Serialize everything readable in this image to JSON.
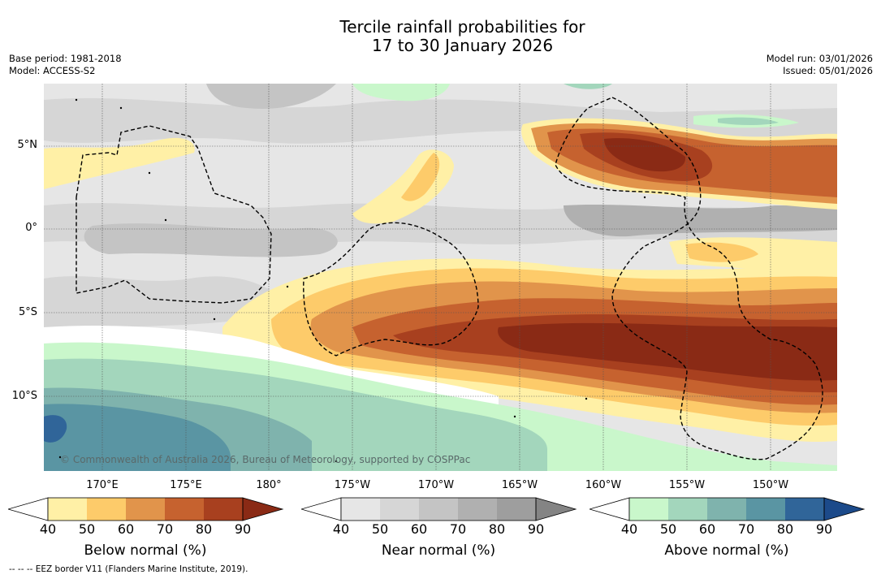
{
  "title": {
    "line1": "Tercile rainfall probabilities for",
    "line2": "17 to 30 January 2026"
  },
  "meta_left": {
    "base_period": "Base period: 1981-2018",
    "model": "Model: ACCESS-S2"
  },
  "meta_right": {
    "model_run": "Model run: 03/01/2026",
    "issued": "Issued: 05/01/2026"
  },
  "map": {
    "copyright": "© Commonwealth of Australia 2026, Bureau of Meteorology, supported by COSPPac",
    "lon_labels": [
      "170°E",
      "175°E",
      "180°",
      "175°W",
      "170°W",
      "165°W",
      "160°W",
      "155°W",
      "150°W"
    ],
    "lat_labels": [
      "5°N",
      "0°",
      "5°S",
      "10°S"
    ]
  },
  "legends": {
    "below": {
      "title": "Below normal (%)",
      "ticks": [
        "40",
        "50",
        "60",
        "70",
        "80",
        "90"
      ],
      "colors": [
        "#ffffff",
        "#fff0a6",
        "#fdcb6a",
        "#e1944b",
        "#c6622f",
        "#a8401f",
        "#8a2a15"
      ]
    },
    "near": {
      "title": "Near normal (%)",
      "ticks": [
        "40",
        "50",
        "60",
        "70",
        "80",
        "90"
      ],
      "colors": [
        "#ffffff",
        "#e6e6e6",
        "#d6d6d6",
        "#c4c4c4",
        "#b0b0b0",
        "#9e9e9e",
        "#848484"
      ]
    },
    "above": {
      "title": "Above normal (%)",
      "ticks": [
        "40",
        "50",
        "60",
        "70",
        "80",
        "90"
      ],
      "colors": [
        "#ffffff",
        "#c9f7cb",
        "#a3d6bc",
        "#7fb3ad",
        "#5a95a3",
        "#306599",
        "#1c4a8a"
      ]
    }
  },
  "footnote": "-- -- -- EEZ border V11 (Flanders Marine Institute, 2019)."
}
